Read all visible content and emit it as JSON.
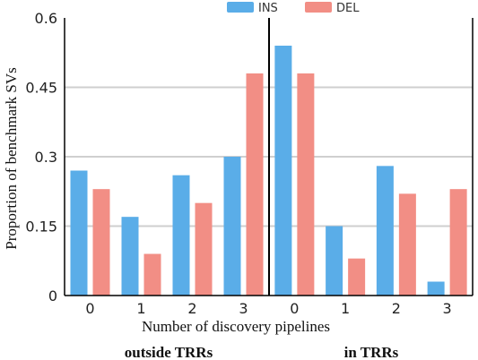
{
  "chart_data": {
    "type": "bar",
    "ylabel": "Proportion of benchmark SVs",
    "xlabel": "Number of discovery pipelines",
    "ylim": [
      0,
      0.6
    ],
    "yticks": [
      "0",
      "0.15",
      "0.3",
      "0.45",
      "0.6"
    ],
    "ytick_values": [
      0,
      0.15,
      0.3,
      0.45,
      0.6
    ],
    "grid": true,
    "legend_position": "top-center",
    "series": [
      {
        "name": "INS",
        "color": "#5aade8"
      },
      {
        "name": "DEL",
        "color": "#f28e85"
      }
    ],
    "panels": [
      {
        "title": "outside TRRs",
        "categories": [
          "0",
          "1",
          "2",
          "3"
        ],
        "INS": [
          0.27,
          0.17,
          0.26,
          0.3
        ],
        "DEL": [
          0.23,
          0.09,
          0.2,
          0.48
        ]
      },
      {
        "title": "in TRRs",
        "categories": [
          "0",
          "1",
          "2",
          "3"
        ],
        "INS": [
          0.54,
          0.15,
          0.28,
          0.03
        ],
        "DEL": [
          0.48,
          0.08,
          0.22,
          0.23
        ]
      }
    ]
  }
}
